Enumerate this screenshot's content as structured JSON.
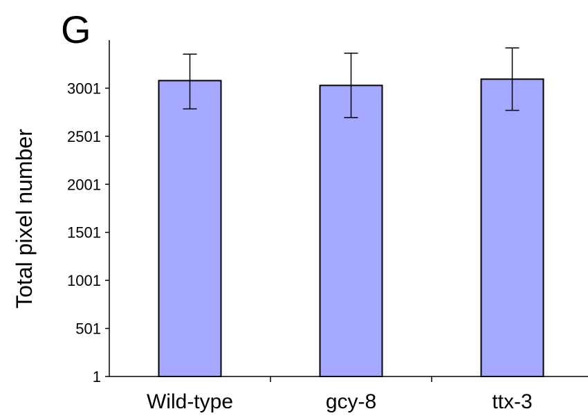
{
  "panel_label": "G",
  "chart_data": {
    "type": "bar",
    "categories": [
      "Wild-type",
      "gcy-8",
      "ttx-3"
    ],
    "values": [
      3080,
      3030,
      3095
    ],
    "errors": [
      {
        "low": 2785,
        "high": 3355
      },
      {
        "low": 2695,
        "high": 3365
      },
      {
        "low": 2770,
        "high": 3420
      }
    ],
    "title": "",
    "xlabel": "",
    "ylabel": "Total pixel number",
    "yticks": [
      1,
      501,
      1001,
      1501,
      2001,
      2501,
      3001
    ],
    "ylim": [
      1,
      3501
    ],
    "grid": false,
    "bar_color": "#a5a8ff",
    "bar_edge_color": "#000000"
  }
}
